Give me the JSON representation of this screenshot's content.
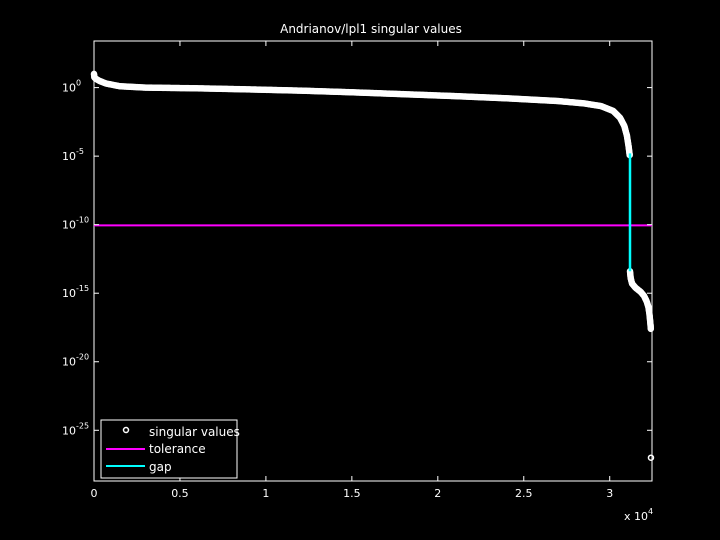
{
  "chart_data": {
    "type": "scatter",
    "title": "Andrianov/lpl1 singular values",
    "xlabel": "",
    "ylabel": "",
    "x_multiplier_label": "x 10",
    "x_multiplier_exp": "4",
    "xlim": [
      0,
      32460
    ],
    "ylim_log10": [
      -28.7,
      3.4
    ],
    "yscale": "log",
    "grid": false,
    "legend_position": "bottom-left",
    "x_ticks": [
      {
        "value": 0,
        "label": "0"
      },
      {
        "value": 5000,
        "label": "0.5"
      },
      {
        "value": 10000,
        "label": "1"
      },
      {
        "value": 15000,
        "label": "1.5"
      },
      {
        "value": 20000,
        "label": "2"
      },
      {
        "value": 25000,
        "label": "2.5"
      },
      {
        "value": 30000,
        "label": "3"
      }
    ],
    "y_ticks": [
      {
        "exp": 0,
        "base": "10",
        "label": "0"
      },
      {
        "exp": -5,
        "base": "10",
        "label": "-5"
      },
      {
        "exp": -10,
        "base": "10",
        "label": "-10"
      },
      {
        "exp": -15,
        "base": "10",
        "label": "-15"
      },
      {
        "exp": -20,
        "base": "10",
        "label": "-20"
      },
      {
        "exp": -25,
        "base": "10",
        "label": "-25"
      }
    ],
    "series": [
      {
        "name": "singular values",
        "style": "marker-circle",
        "color": "#ffffff",
        "points_log10": [
          [
            0,
            1.0
          ],
          [
            20,
            0.75
          ],
          [
            100,
            0.65
          ],
          [
            300,
            0.5
          ],
          [
            700,
            0.3
          ],
          [
            1500,
            0.1
          ],
          [
            3000,
            0.0
          ],
          [
            6000,
            -0.05
          ],
          [
            9000,
            -0.13
          ],
          [
            12000,
            -0.22
          ],
          [
            15000,
            -0.34
          ],
          [
            18000,
            -0.48
          ],
          [
            21000,
            -0.62
          ],
          [
            24000,
            -0.78
          ],
          [
            27000,
            -0.98
          ],
          [
            28500,
            -1.15
          ],
          [
            29500,
            -1.35
          ],
          [
            30200,
            -1.7
          ],
          [
            30600,
            -2.2
          ],
          [
            30850,
            -2.8
          ],
          [
            31000,
            -3.5
          ],
          [
            31100,
            -4.3
          ],
          [
            31170,
            -5.0
          ],
          [
            31180,
            -13.4
          ],
          [
            31220,
            -13.9
          ],
          [
            31300,
            -14.3
          ],
          [
            31500,
            -14.6
          ],
          [
            31800,
            -14.9
          ],
          [
            32000,
            -15.2
          ],
          [
            32150,
            -15.6
          ],
          [
            32250,
            -16.0
          ],
          [
            32310,
            -16.5
          ],
          [
            32350,
            -17.0
          ],
          [
            32380,
            -17.4
          ],
          [
            32390,
            -17.6
          ],
          [
            32400,
            -27.0
          ]
        ]
      },
      {
        "name": "tolerance",
        "style": "line",
        "color": "#ff00ff",
        "y_log10": -10.05
      },
      {
        "name": "gap",
        "style": "line",
        "color": "#00ffff",
        "x": 31180,
        "y_log10_range": [
          -4.8,
          -13.4
        ]
      }
    ]
  }
}
